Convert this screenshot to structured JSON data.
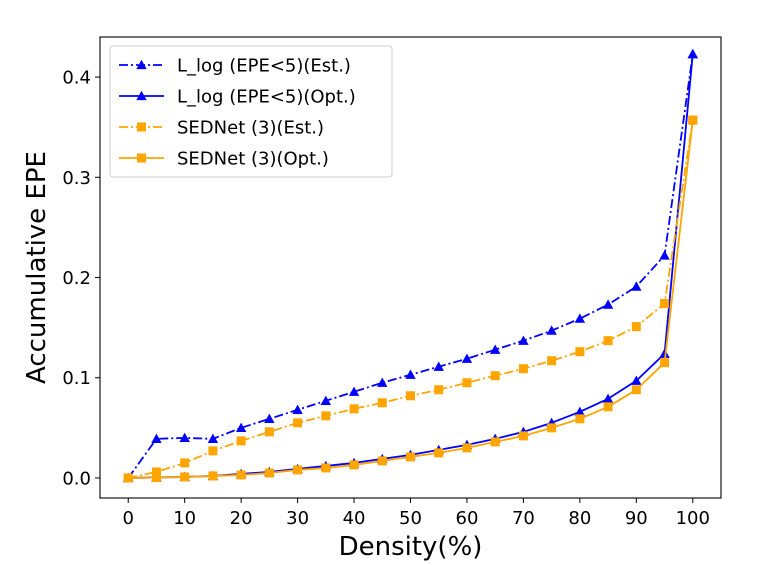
{
  "chart_data": {
    "type": "line",
    "title": "",
    "xlabel": "Density(%)",
    "ylabel": "Accumulative EPE",
    "xlim": [
      -5,
      105
    ],
    "ylim": [
      -0.02,
      0.44
    ],
    "xticks": [
      0,
      10,
      20,
      30,
      40,
      50,
      60,
      70,
      80,
      90,
      100
    ],
    "xtick_labels": [
      "0",
      "10",
      "20",
      "30",
      "40",
      "50",
      "60",
      "70",
      "80",
      "90",
      "100"
    ],
    "yticks": [
      0.0,
      0.1,
      0.2,
      0.3,
      0.4
    ],
    "ytick_labels": [
      "0.0",
      "0.1",
      "0.2",
      "0.3",
      "0.4"
    ],
    "grid": false,
    "legend_position": "top-left",
    "x": [
      0,
      5,
      10,
      15,
      20,
      25,
      30,
      35,
      40,
      45,
      50,
      55,
      60,
      65,
      70,
      75,
      80,
      85,
      90,
      95,
      100
    ],
    "series": [
      {
        "name": "L_log (EPE<5)(Est.)",
        "color": "#0000ff",
        "line_style": "dashdot",
        "marker": "triangle",
        "values": [
          0.0,
          0.039,
          0.04,
          0.039,
          0.05,
          0.059,
          0.068,
          0.077,
          0.086,
          0.095,
          0.103,
          0.111,
          0.119,
          0.128,
          0.137,
          0.147,
          0.159,
          0.173,
          0.191,
          0.222,
          0.423
        ]
      },
      {
        "name": "L_log (EPE<5)(Opt.)",
        "color": "#0000ff",
        "line_style": "solid",
        "marker": "triangle",
        "values": [
          0.0,
          0.0005,
          0.001,
          0.002,
          0.004,
          0.006,
          0.009,
          0.012,
          0.015,
          0.019,
          0.023,
          0.028,
          0.033,
          0.039,
          0.046,
          0.055,
          0.066,
          0.079,
          0.097,
          0.124,
          0.423
        ]
      },
      {
        "name": "SEDNet (3)(Est.)",
        "color": "#ffa500",
        "line_style": "dashdot",
        "marker": "square",
        "values": [
          0.0,
          0.006,
          0.015,
          0.027,
          0.037,
          0.046,
          0.055,
          0.062,
          0.069,
          0.075,
          0.082,
          0.088,
          0.095,
          0.102,
          0.109,
          0.117,
          0.126,
          0.137,
          0.151,
          0.174,
          0.357
        ]
      },
      {
        "name": "SEDNet (3)(Opt.)",
        "color": "#ffa500",
        "line_style": "solid",
        "marker": "square",
        "values": [
          0.0,
          0.0004,
          0.001,
          0.002,
          0.003,
          0.005,
          0.008,
          0.01,
          0.013,
          0.017,
          0.021,
          0.025,
          0.03,
          0.036,
          0.042,
          0.05,
          0.059,
          0.071,
          0.088,
          0.115,
          0.357
        ]
      }
    ]
  }
}
